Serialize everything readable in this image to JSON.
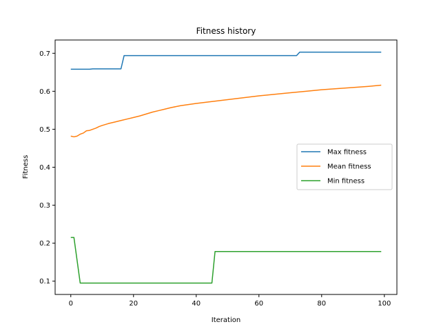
{
  "chart_data": {
    "type": "line",
    "title": "Fitness history",
    "xlabel": "Iteration",
    "ylabel": "Fitness",
    "xlim": [
      -5,
      104
    ],
    "ylim": [
      0.065,
      0.735
    ],
    "xticks": [
      0,
      20,
      40,
      60,
      80,
      100
    ],
    "yticks": [
      0.1,
      0.2,
      0.3,
      0.4,
      0.5,
      0.6,
      0.7
    ],
    "grid": false,
    "legend_position": "center-right",
    "series": [
      {
        "name": "Max fitness",
        "color": "#1f77b4",
        "x": [
          0,
          6,
          7,
          16,
          17,
          72,
          73,
          99
        ],
        "y": [
          0.658,
          0.658,
          0.659,
          0.659,
          0.694,
          0.694,
          0.703,
          0.703
        ]
      },
      {
        "name": "Mean fitness",
        "color": "#ff7f0e",
        "x": [
          0,
          1,
          2,
          3,
          4,
          5,
          6,
          7,
          8,
          9,
          10,
          12,
          14,
          16,
          18,
          20,
          22,
          24,
          26,
          28,
          30,
          32,
          35,
          40,
          45,
          50,
          55,
          60,
          65,
          70,
          75,
          80,
          85,
          90,
          95,
          99
        ],
        "y": [
          0.482,
          0.48,
          0.482,
          0.487,
          0.49,
          0.496,
          0.497,
          0.5,
          0.503,
          0.507,
          0.51,
          0.515,
          0.519,
          0.523,
          0.527,
          0.531,
          0.535,
          0.54,
          0.545,
          0.549,
          0.553,
          0.557,
          0.562,
          0.568,
          0.573,
          0.578,
          0.583,
          0.588,
          0.592,
          0.596,
          0.6,
          0.604,
          0.607,
          0.61,
          0.613,
          0.616
        ]
      },
      {
        "name": "Min fitness",
        "color": "#2ca02c",
        "x": [
          0,
          1,
          3,
          45,
          46,
          99
        ],
        "y": [
          0.215,
          0.215,
          0.095,
          0.095,
          0.178,
          0.178
        ]
      }
    ]
  }
}
